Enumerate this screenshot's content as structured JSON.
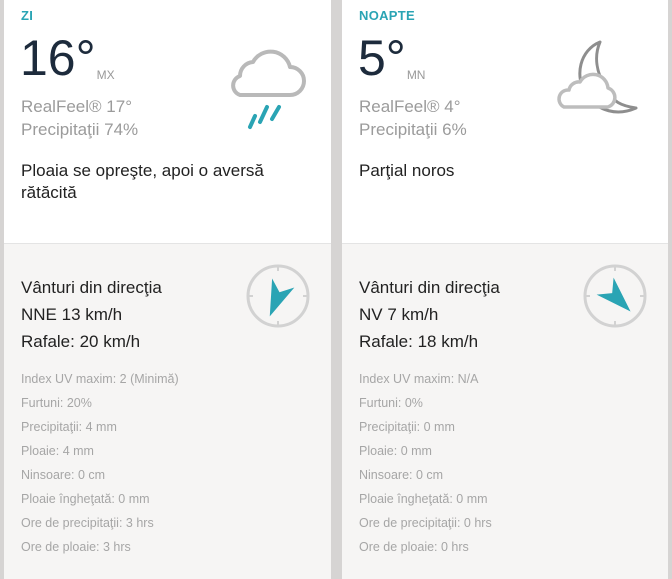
{
  "accent": "#2aa4b4",
  "day": {
    "label": "ZI",
    "temp": "16°",
    "unit": "MX",
    "realfeel": "RealFeel® 17°",
    "precip": "Precipitaţii 74%",
    "description": "Ploaia se opreşte, apoi o aversă rătăcită",
    "icon": "cloud-rain-icon",
    "wind": {
      "title": "Vânturi din direcţia",
      "value": "NNE 13 km/h",
      "gusts": "Rafale: 20 km/h",
      "direction_deg": 202
    },
    "details": [
      "Index UV maxim: 2 (Minimă)",
      "Furtuni: 20%",
      "Precipitaţii: 4 mm",
      "Ploaie: 4 mm",
      "Ninsoare: 0 cm",
      "Ploaie îngheţată: 0 mm",
      "Ore de precipitaţii: 3 hrs",
      "Ore de ploaie: 3 hrs"
    ]
  },
  "night": {
    "label": "NOAPTE",
    "temp": "5°",
    "unit": "MN",
    "realfeel": "RealFeel® 4°",
    "precip": "Precipitaţii 6%",
    "description": "Parţial noros",
    "icon": "moon-cloud-icon",
    "wind": {
      "title": "Vânturi din direcţia",
      "value": "NV 7 km/h",
      "gusts": "Rafale: 18 km/h",
      "direction_deg": 135
    },
    "details": [
      "Index UV maxim: N/A",
      "Furtuni: 0%",
      "Precipitaţii: 0 mm",
      "Ploaie: 0 mm",
      "Ninsoare: 0 cm",
      "Ploaie îngheţată: 0 mm",
      "Ore de precipitaţii: 0 hrs",
      "Ore de ploaie: 0 hrs"
    ]
  }
}
